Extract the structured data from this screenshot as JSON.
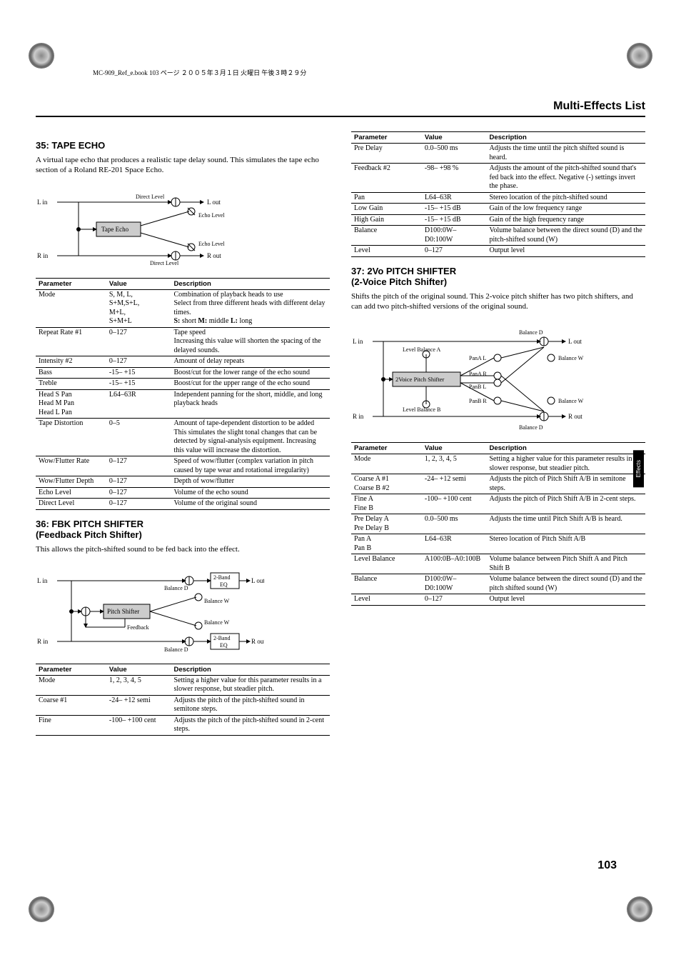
{
  "print_header": "MC-909_Ref_e.book 103 ページ ２００５年３月１日 火曜日 午後３時２９分",
  "page_title": "Multi-Effects List",
  "side_tab": "Effects",
  "page_number": "103",
  "section35": {
    "title": "35: TAPE ECHO",
    "desc": "A virtual tape echo that produces a realistic tape delay sound. This simulates the tape echo section of a Roland RE-201 Space Echo.",
    "diagram_labels": {
      "l_in": "L in",
      "r_in": "R in",
      "l_out": "L out",
      "r_out": "R out",
      "direct_level1": "Direct Level",
      "direct_level2": "Direct Level",
      "echo_level1": "Echo Level",
      "echo_level2": "Echo Level",
      "tape_echo": "Tape Echo"
    },
    "headers": {
      "param": "Parameter",
      "value": "Value",
      "desc": "Description"
    },
    "rows": [
      {
        "param": "Mode",
        "value": "S, M, L,\nS+M,S+L,\nM+L,\nS+M+L",
        "desc": "Combination of playback heads to use\nSelect from three different heads with different delay times.\n<b>S:</b> short <b>M:</b> middle <b>L:</b> long"
      },
      {
        "param": "Repeat Rate #1",
        "value": "0–127",
        "desc": "Tape speed\nIncreasing this value will shorten the spacing of the delayed sounds."
      },
      {
        "param": "Intensity #2",
        "value": "0–127",
        "desc": "Amount of delay repeats"
      },
      {
        "param": "Bass",
        "value": "-15– +15",
        "desc": "Boost/cut for the lower range of the echo sound"
      },
      {
        "param": "Treble",
        "value": "-15– +15",
        "desc": "Boost/cut for the upper range of the echo sound"
      },
      {
        "param": "Head S Pan\nHead M Pan\nHead L Pan",
        "value": "L64–63R",
        "desc": "Independent panning for the short, middle, and long playback heads"
      },
      {
        "param": "Tape Distortion",
        "value": "0–5",
        "desc": "Amount of tape-dependent distortion to be added\nThis simulates the slight tonal changes that can be detected by signal-analysis equipment. Increasing this value will increase the distortion."
      },
      {
        "param": "Wow/Flutter Rate",
        "value": "0–127",
        "desc": "Speed of wow/flutter (complex variation in pitch caused by tape wear and rotational irregularity)"
      },
      {
        "param": "Wow/Flutter Depth",
        "value": "0–127",
        "desc": "Depth of wow/flutter"
      },
      {
        "param": "Echo Level",
        "value": "0–127",
        "desc": "Volume of the echo sound"
      },
      {
        "param": "Direct Level",
        "value": "0–127",
        "desc": "Volume of the original sound"
      }
    ]
  },
  "section36": {
    "title": "36: FBK PITCH SHIFTER\n(Feedback Pitch Shifter)",
    "desc": "This allows the pitch-shifted sound to be fed back into the effect.",
    "diagram_labels": {
      "l_in": "L in",
      "r_in": "R in",
      "l_out": "L out",
      "r_out": "R out",
      "balance_d1": "Balance D",
      "balance_d2": "Balance D",
      "balance_w1": "Balance W",
      "balance_w2": "Balance W",
      "pitch_shifter": "Pitch Shifter",
      "feedback": "Feedback",
      "eq1": "2-Band\nEQ",
      "eq2": "2-Band\nEQ"
    },
    "headers": {
      "param": "Parameter",
      "value": "Value",
      "desc": "Description"
    },
    "rows": [
      {
        "param": "Mode",
        "value": "1, 2, 3, 4, 5",
        "desc": "Setting a higher value for this parameter results in a slower response, but steadier pitch."
      },
      {
        "param": "Coarse #1",
        "value": "-24– +12 semi",
        "desc": "Adjusts the pitch of the pitch-shifted sound in semitone steps."
      },
      {
        "param": "Fine",
        "value": "-100– +100 cent",
        "desc": "Adjusts the pitch of the pitch-shifted sound in 2-cent steps."
      }
    ]
  },
  "section36b": {
    "headers": {
      "param": "Parameter",
      "value": "Value",
      "desc": "Description"
    },
    "rows": [
      {
        "param": "Pre Delay",
        "value": "0.0–500 ms",
        "desc": "Adjusts the time until the pitch shifted sound is heard."
      },
      {
        "param": "Feedback #2",
        "value": "-98– +98 %",
        "desc": "Adjusts the amount of the pitch-shifted sound that's fed back into the effect. Negative (-) settings invert the phase."
      },
      {
        "param": "Pan",
        "value": "L64–63R",
        "desc": "Stereo location of the pitch-shifted sound"
      },
      {
        "param": "Low Gain",
        "value": "-15– +15 dB",
        "desc": "Gain of the low frequency range"
      },
      {
        "param": "High Gain",
        "value": "-15– +15 dB",
        "desc": "Gain of the high frequency range"
      },
      {
        "param": "Balance",
        "value": "D100:0W–D0:100W",
        "desc": "Volume balance between the direct sound (D) and the pitch-shifted sound (W)"
      },
      {
        "param": "Level",
        "value": "0–127",
        "desc": "Output level"
      }
    ]
  },
  "section37": {
    "title": "37: 2Vo PITCH SHIFTER\n(2-Voice Pitch Shifter)",
    "desc": "Shifts the pitch of the original sound. This 2-voice pitch shifter has two pitch shifters, and can add two pitch-shifted versions of the original sound.",
    "diagram_labels": {
      "l_in": "L in",
      "r_in": "R in",
      "l_out": "L out",
      "r_out": "R out",
      "balance_d1": "Balance D",
      "balance_d2": "Balance D",
      "balance_w1": "Balance W",
      "balance_w2": "Balance W",
      "level_balance_a": "Level Balance A",
      "level_balance_b": "Level Balance B",
      "pitch_shifter": "2Voice Pitch Shifter",
      "pan_a_l": "PanA L",
      "pan_a_r": "PanA R",
      "pan_b_l": "PanB L",
      "pan_b_r": "PanB R"
    },
    "headers": {
      "param": "Parameter",
      "value": "Value",
      "desc": "Description"
    },
    "rows": [
      {
        "param": "Mode",
        "value": "1, 2, 3, 4, 5",
        "desc": "Setting a higher value for this parameter results in a slower response, but steadier pitch."
      },
      {
        "param": "Coarse A #1\nCoarse B #2",
        "value": "-24– +12 semi",
        "desc": "Adjusts the pitch of Pitch Shift A/B in semitone steps."
      },
      {
        "param": "Fine A\nFine B",
        "value": "-100– +100 cent",
        "desc": "Adjusts the pitch of Pitch Shift A/B in 2-cent steps."
      },
      {
        "param": "Pre Delay A\nPre Delay B",
        "value": "0.0–500 ms",
        "desc": "Adjusts the time until Pitch Shift A/B is heard."
      },
      {
        "param": "Pan A\nPan B",
        "value": "L64–63R",
        "desc": "Stereo location of Pitch Shift A/B"
      },
      {
        "param": "Level Balance",
        "value": "A100:0B–A0:100B",
        "desc": "Volume balance between Pitch Shift A and Pitch Shift B"
      },
      {
        "param": "Balance",
        "value": "D100:0W–D0:100W",
        "desc": "Volume balance between the direct sound (D) and the pitch shifted sound (W)"
      },
      {
        "param": "Level",
        "value": "0–127",
        "desc": "Output level"
      }
    ]
  }
}
